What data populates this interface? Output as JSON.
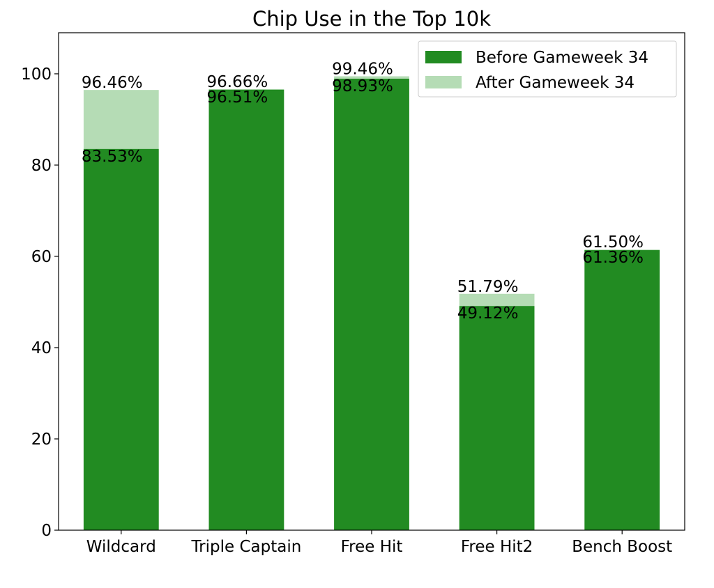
{
  "chart_data": {
    "type": "bar",
    "stacked": true,
    "title": "Chip Use in the Top 10k",
    "xlabel": "",
    "ylabel": "",
    "categories": [
      "Wildcard",
      "Triple Captain",
      "Free Hit",
      "Free Hit2",
      "Bench Boost"
    ],
    "series": [
      {
        "name": "Before Gameweek 34",
        "color": "#228b22",
        "values": [
          83.53,
          96.51,
          98.93,
          49.12,
          61.36
        ],
        "labels": [
          "83.53%",
          "96.51%",
          "98.93%",
          "49.12%",
          "61.36%"
        ]
      },
      {
        "name": "After Gameweek 34",
        "color": "#b5dcb5",
        "totals": [
          96.46,
          96.66,
          99.46,
          51.79,
          61.5
        ],
        "labels": [
          "96.46%",
          "96.66%",
          "99.46%",
          "51.79%",
          "61.50%"
        ]
      }
    ],
    "ylim": [
      0,
      109
    ],
    "yticks": [
      0,
      20,
      40,
      60,
      80,
      100
    ],
    "ytick_labels": [
      "0",
      "20",
      "40",
      "60",
      "80",
      "100"
    ],
    "grid": false,
    "legend": "top-right"
  }
}
